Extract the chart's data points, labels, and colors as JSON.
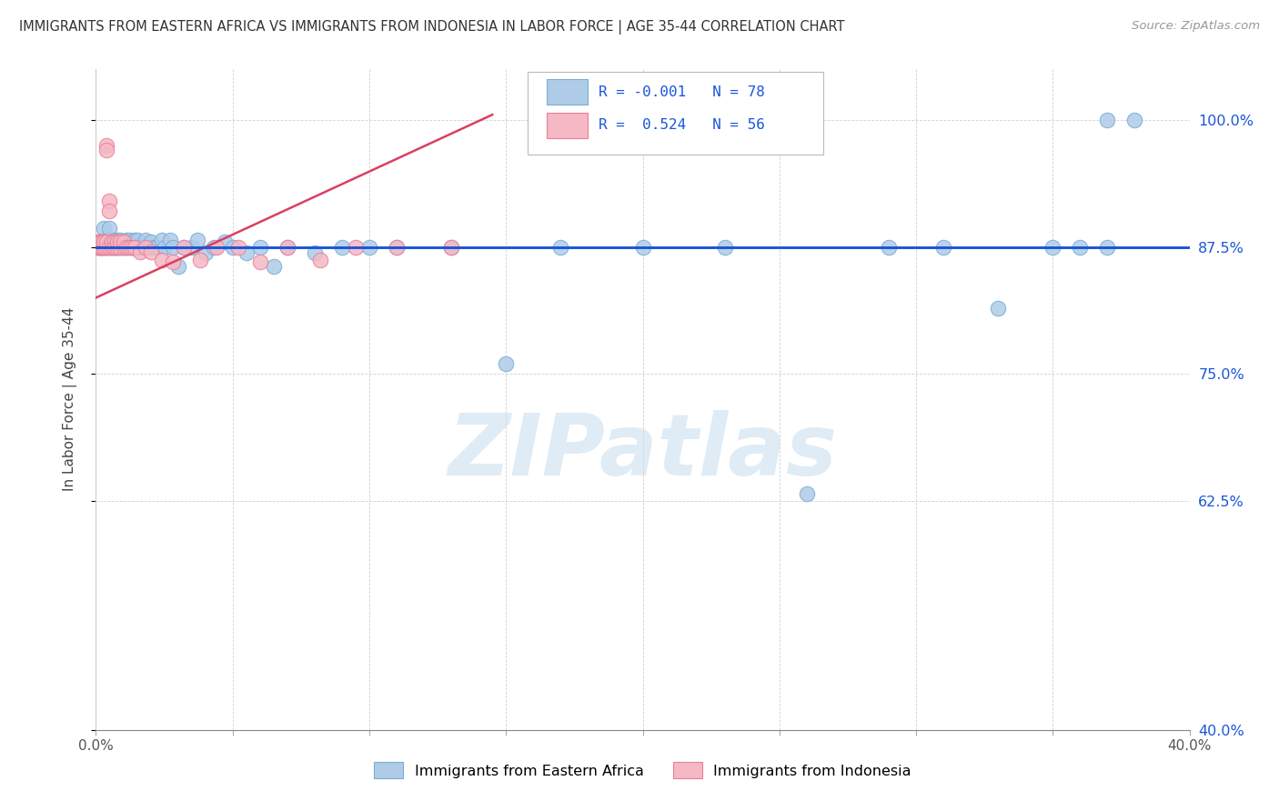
{
  "title": "IMMIGRANTS FROM EASTERN AFRICA VS IMMIGRANTS FROM INDONESIA IN LABOR FORCE | AGE 35-44 CORRELATION CHART",
  "source": "Source: ZipAtlas.com",
  "ylabel": "In Labor Force | Age 35-44",
  "xlim": [
    0.0,
    0.4
  ],
  "ylim": [
    0.4,
    1.05
  ],
  "ytick_vals": [
    0.4,
    0.625,
    0.75,
    0.875,
    1.0
  ],
  "ytick_labels": [
    "40.0%",
    "62.5%",
    "75.0%",
    "87.5%",
    "100.0%"
  ],
  "xtick_vals": [
    0.0,
    0.05,
    0.1,
    0.15,
    0.2,
    0.25,
    0.3,
    0.35,
    0.4
  ],
  "xtick_labels": [
    "0.0%",
    "",
    "",
    "",
    "",
    "",
    "",
    "",
    "40.0%"
  ],
  "hline_y": 0.875,
  "hline_color": "#1a56db",
  "legend_blue_label": "Immigrants from Eastern Africa",
  "legend_pink_label": "Immigrants from Indonesia",
  "R_blue": "-0.001",
  "N_blue": "78",
  "R_pink": "0.524",
  "N_pink": "56",
  "blue_color": "#aecce8",
  "pink_color": "#f5b8c4",
  "blue_edge": "#7aadd4",
  "pink_edge": "#e8809a",
  "trend_blue_color": "#1a56db",
  "trend_pink_color": "#d94060",
  "watermark": "ZIPatlas",
  "blue_x": [
    0.001,
    0.002,
    0.002,
    0.003,
    0.003,
    0.003,
    0.004,
    0.004,
    0.004,
    0.005,
    0.005,
    0.005,
    0.006,
    0.006,
    0.006,
    0.007,
    0.007,
    0.007,
    0.008,
    0.008,
    0.008,
    0.009,
    0.009,
    0.01,
    0.01,
    0.01,
    0.011,
    0.011,
    0.012,
    0.012,
    0.013,
    0.013,
    0.013,
    0.014,
    0.014,
    0.015,
    0.015,
    0.016,
    0.017,
    0.018,
    0.019,
    0.02,
    0.021,
    0.022,
    0.024,
    0.025,
    0.027,
    0.028,
    0.03,
    0.032,
    0.035,
    0.037,
    0.04,
    0.043,
    0.047,
    0.05,
    0.055,
    0.06,
    0.065,
    0.07,
    0.08,
    0.09,
    0.1,
    0.11,
    0.13,
    0.15,
    0.17,
    0.2,
    0.23,
    0.26,
    0.29,
    0.31,
    0.33,
    0.35,
    0.36,
    0.37,
    0.37,
    0.38
  ],
  "blue_y": [
    0.875,
    0.875,
    0.88,
    0.875,
    0.882,
    0.893,
    0.875,
    0.88,
    0.875,
    0.875,
    0.882,
    0.893,
    0.875,
    0.88,
    0.875,
    0.875,
    0.882,
    0.875,
    0.875,
    0.882,
    0.875,
    0.875,
    0.882,
    0.875,
    0.88,
    0.875,
    0.875,
    0.882,
    0.875,
    0.882,
    0.875,
    0.88,
    0.875,
    0.875,
    0.882,
    0.875,
    0.882,
    0.875,
    0.875,
    0.882,
    0.875,
    0.88,
    0.875,
    0.875,
    0.882,
    0.875,
    0.882,
    0.875,
    0.856,
    0.875,
    0.875,
    0.882,
    0.869,
    0.875,
    0.88,
    0.875,
    0.869,
    0.875,
    0.856,
    0.875,
    0.869,
    0.875,
    0.875,
    0.875,
    0.875,
    0.76,
    0.875,
    0.875,
    0.875,
    0.632,
    0.875,
    0.875,
    0.815,
    0.875,
    0.875,
    0.875,
    1.0,
    1.0
  ],
  "pink_x": [
    0.001,
    0.001,
    0.001,
    0.001,
    0.001,
    0.001,
    0.002,
    0.002,
    0.002,
    0.002,
    0.002,
    0.002,
    0.003,
    0.003,
    0.003,
    0.003,
    0.003,
    0.003,
    0.004,
    0.004,
    0.004,
    0.004,
    0.005,
    0.005,
    0.005,
    0.006,
    0.006,
    0.006,
    0.007,
    0.007,
    0.007,
    0.008,
    0.008,
    0.009,
    0.009,
    0.01,
    0.01,
    0.011,
    0.012,
    0.013,
    0.014,
    0.016,
    0.018,
    0.02,
    0.024,
    0.028,
    0.032,
    0.038,
    0.044,
    0.052,
    0.06,
    0.07,
    0.082,
    0.095,
    0.11,
    0.13
  ],
  "pink_y": [
    0.875,
    0.88,
    0.875,
    0.88,
    0.875,
    0.88,
    0.875,
    0.88,
    0.875,
    0.88,
    0.875,
    0.88,
    0.875,
    0.88,
    0.875,
    0.88,
    0.875,
    0.88,
    0.875,
    0.88,
    0.975,
    0.97,
    0.92,
    0.91,
    0.875,
    0.88,
    0.875,
    0.88,
    0.875,
    0.88,
    0.875,
    0.875,
    0.88,
    0.875,
    0.88,
    0.875,
    0.88,
    0.875,
    0.875,
    0.875,
    0.875,
    0.87,
    0.875,
    0.87,
    0.862,
    0.86,
    0.875,
    0.862,
    0.875,
    0.875,
    0.86,
    0.875,
    0.862,
    0.875,
    0.875,
    0.875
  ],
  "pink_trend_x0": 0.0,
  "pink_trend_x1": 0.145,
  "pink_trend_y0": 0.825,
  "pink_trend_y1": 1.005
}
